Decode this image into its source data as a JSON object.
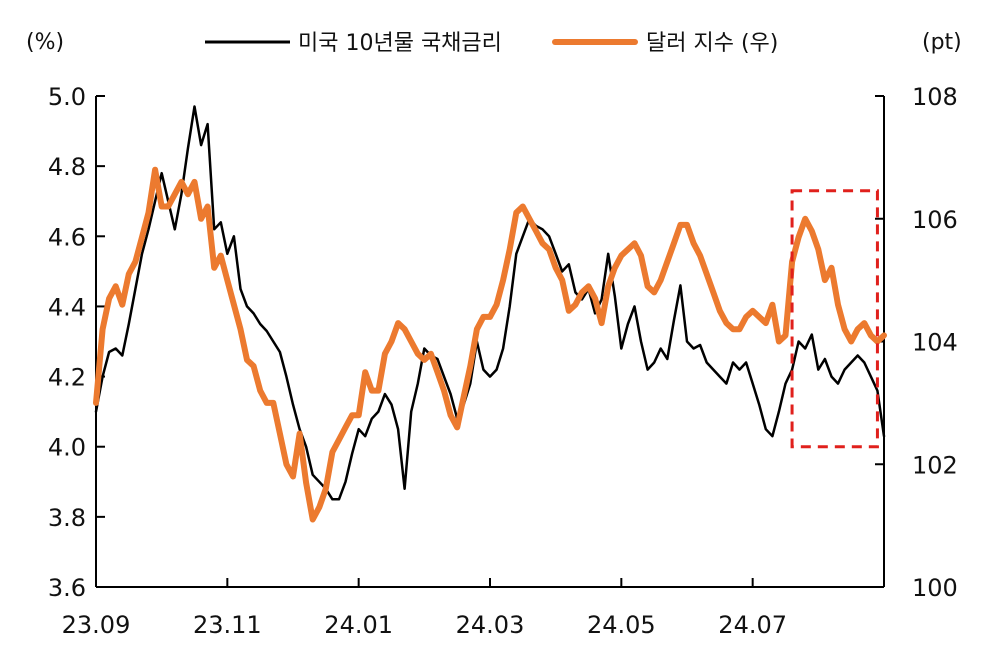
{
  "chart_data": {
    "type": "line",
    "left_unit": "(%)",
    "right_unit": "(pt)",
    "x_ticks": [
      "23.09",
      "23.11",
      "24.01",
      "24.03",
      "24.05",
      "24.07"
    ],
    "y_left": {
      "min": 3.6,
      "max": 5.0,
      "ticks": [
        "3.6",
        "3.8",
        "4.0",
        "4.2",
        "4.4",
        "4.6",
        "4.8",
        "5.0"
      ]
    },
    "y_right": {
      "min": 100,
      "max": 108,
      "ticks": [
        "100",
        "102",
        "104",
        "106",
        "108"
      ]
    },
    "highlight_box": {
      "x_start": 10.6,
      "x_end": 11.9,
      "y_left_min": 4.0,
      "y_left_max": 4.73,
      "color": "#e0201c"
    },
    "series": [
      {
        "name": "미국 10년물 국채금리",
        "axis": "left",
        "color": "#000000",
        "x": [
          0,
          0.1,
          0.2,
          0.3,
          0.4,
          0.5,
          0.6,
          0.7,
          0.8,
          0.9,
          1.0,
          1.1,
          1.2,
          1.3,
          1.4,
          1.5,
          1.6,
          1.7,
          1.8,
          1.9,
          2.0,
          2.1,
          2.2,
          2.3,
          2.4,
          2.5,
          2.6,
          2.7,
          2.8,
          2.9,
          3.0,
          3.1,
          3.2,
          3.3,
          3.4,
          3.5,
          3.6,
          3.7,
          3.8,
          3.9,
          4.0,
          4.1,
          4.2,
          4.3,
          4.4,
          4.5,
          4.6,
          4.7,
          4.8,
          4.9,
          5.0,
          5.1,
          5.2,
          5.3,
          5.4,
          5.5,
          5.6,
          5.7,
          5.8,
          5.9,
          6.0,
          6.1,
          6.2,
          6.3,
          6.4,
          6.5,
          6.6,
          6.7,
          6.8,
          6.9,
          7.0,
          7.1,
          7.2,
          7.3,
          7.4,
          7.5,
          7.6,
          7.7,
          7.8,
          7.9,
          8.0,
          8.1,
          8.2,
          8.3,
          8.4,
          8.5,
          8.6,
          8.7,
          8.8,
          8.9,
          9.0,
          9.1,
          9.2,
          9.3,
          9.4,
          9.5,
          9.6,
          9.7,
          9.8,
          9.9,
          10.0,
          10.1,
          10.2,
          10.3,
          10.4,
          10.5,
          10.6,
          10.7,
          10.8,
          10.9,
          11.0,
          11.1,
          11.2,
          11.3,
          11.4,
          11.5,
          11.6,
          11.7,
          11.8,
          11.9,
          12.0
        ],
        "values": [
          4.1,
          4.2,
          4.27,
          4.28,
          4.26,
          4.35,
          4.45,
          4.55,
          4.62,
          4.7,
          4.78,
          4.7,
          4.62,
          4.72,
          4.85,
          4.97,
          4.86,
          4.92,
          4.62,
          4.64,
          4.55,
          4.6,
          4.45,
          4.4,
          4.38,
          4.35,
          4.33,
          4.3,
          4.27,
          4.2,
          4.12,
          4.05,
          4.0,
          3.92,
          3.9,
          3.88,
          3.85,
          3.85,
          3.9,
          3.98,
          4.05,
          4.03,
          4.08,
          4.1,
          4.15,
          4.12,
          4.05,
          3.88,
          4.1,
          4.18,
          4.28,
          4.26,
          4.25,
          4.2,
          4.15,
          4.08,
          4.12,
          4.18,
          4.3,
          4.22,
          4.2,
          4.22,
          4.28,
          4.4,
          4.55,
          4.6,
          4.65,
          4.63,
          4.62,
          4.6,
          4.55,
          4.5,
          4.52,
          4.44,
          4.42,
          4.45,
          4.38,
          4.42,
          4.55,
          4.43,
          4.28,
          4.35,
          4.4,
          4.3,
          4.22,
          4.24,
          4.28,
          4.25,
          4.36,
          4.46,
          4.3,
          4.28,
          4.29,
          4.24,
          4.22,
          4.2,
          4.18,
          4.24,
          4.22,
          4.24,
          4.18,
          4.12,
          4.05,
          4.03,
          4.1,
          4.18,
          4.22,
          4.3,
          4.28,
          4.32,
          4.22,
          4.25,
          4.2,
          4.18,
          4.22,
          4.24,
          4.26,
          4.24,
          4.2,
          4.16,
          4.03
        ],
        "stroke_width": 2.5
      },
      {
        "name": "달러 지수 (우)",
        "axis": "right",
        "color": "#ec7a2f",
        "x": [
          0,
          0.1,
          0.2,
          0.3,
          0.4,
          0.5,
          0.6,
          0.7,
          0.8,
          0.9,
          1.0,
          1.1,
          1.2,
          1.3,
          1.4,
          1.5,
          1.6,
          1.7,
          1.8,
          1.9,
          2.0,
          2.1,
          2.2,
          2.3,
          2.4,
          2.5,
          2.6,
          2.7,
          2.8,
          2.9,
          3.0,
          3.1,
          3.2,
          3.3,
          3.4,
          3.5,
          3.6,
          3.7,
          3.8,
          3.9,
          4.0,
          4.1,
          4.2,
          4.3,
          4.4,
          4.5,
          4.6,
          4.7,
          4.8,
          4.9,
          5.0,
          5.1,
          5.2,
          5.3,
          5.4,
          5.5,
          5.6,
          5.7,
          5.8,
          5.9,
          6.0,
          6.1,
          6.2,
          6.3,
          6.4,
          6.5,
          6.6,
          6.7,
          6.8,
          6.9,
          7.0,
          7.1,
          7.2,
          7.3,
          7.4,
          7.5,
          7.6,
          7.7,
          7.8,
          7.9,
          8.0,
          8.1,
          8.2,
          8.3,
          8.4,
          8.5,
          8.6,
          8.7,
          8.8,
          8.9,
          9.0,
          9.1,
          9.2,
          9.3,
          9.4,
          9.5,
          9.6,
          9.7,
          9.8,
          9.9,
          10.0,
          10.1,
          10.2,
          10.3,
          10.4,
          10.5,
          10.6,
          10.7,
          10.8,
          10.9,
          11.0,
          11.1,
          11.2,
          11.3,
          11.4,
          11.5,
          11.6,
          11.7,
          11.8,
          11.9,
          12.0
        ],
        "values": [
          103.0,
          104.2,
          104.7,
          104.9,
          104.6,
          105.1,
          105.3,
          105.7,
          106.1,
          106.8,
          106.2,
          106.2,
          106.4,
          106.6,
          106.4,
          106.6,
          106.0,
          106.2,
          105.2,
          105.4,
          105.0,
          104.6,
          104.2,
          103.7,
          103.6,
          103.2,
          103.0,
          103.0,
          102.5,
          102.0,
          101.8,
          102.5,
          101.7,
          101.1,
          101.3,
          101.6,
          102.2,
          102.4,
          102.6,
          102.8,
          102.8,
          103.5,
          103.2,
          103.2,
          103.8,
          104.0,
          104.3,
          104.2,
          104.0,
          103.8,
          103.7,
          103.8,
          103.5,
          103.2,
          102.8,
          102.6,
          103.1,
          103.6,
          104.2,
          104.4,
          104.4,
          104.6,
          105.0,
          105.5,
          106.1,
          106.2,
          106.0,
          105.8,
          105.6,
          105.5,
          105.2,
          105.0,
          104.5,
          104.6,
          104.8,
          104.9,
          104.7,
          104.3,
          104.9,
          105.2,
          105.4,
          105.5,
          105.6,
          105.4,
          104.9,
          104.8,
          105.0,
          105.3,
          105.6,
          105.9,
          105.9,
          105.6,
          105.4,
          105.1,
          104.8,
          104.5,
          104.3,
          104.2,
          104.2,
          104.4,
          104.5,
          104.4,
          104.3,
          104.6,
          104.0,
          104.1,
          105.3,
          105.7,
          106.0,
          105.8,
          105.5,
          105.0,
          105.2,
          104.6,
          104.2,
          104.0,
          104.2,
          104.3,
          104.1,
          104.0,
          104.1
        ],
        "stroke_width": 6
      }
    ]
  }
}
